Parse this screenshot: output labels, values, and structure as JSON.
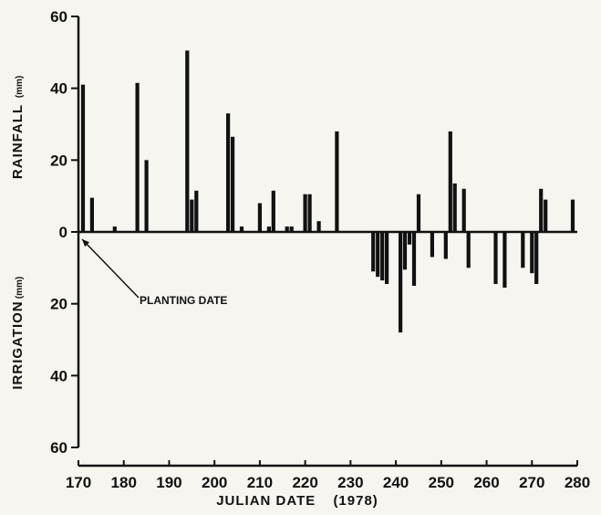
{
  "chart_data": {
    "type": "bar",
    "xlabel": "JULIAN DATE",
    "xlabel_year": "(1978)",
    "ylabel_top": "RAINFALL",
    "ylabel_top_unit": "(mm)",
    "ylabel_bottom": "IRRIGATION",
    "ylabel_bottom_unit": "(mm)",
    "xlim": [
      170,
      280
    ],
    "ylim": [
      -60,
      60
    ],
    "x_ticks": [
      "170",
      "180",
      "190",
      "200",
      "210",
      "220",
      "230",
      "240",
      "250",
      "260",
      "270",
      "280"
    ],
    "y_ticks_top": [
      "60",
      "40",
      "20",
      "0"
    ],
    "y_ticks_bottom": [
      "20",
      "40",
      "60"
    ],
    "annotation": {
      "text": "PLANTING DATE",
      "x": 170,
      "y": 0
    },
    "series": [
      {
        "x": [
          171,
          173,
          178,
          183,
          185,
          194,
          195,
          196,
          203,
          204,
          206,
          210,
          212,
          213,
          216,
          217,
          220,
          221,
          223,
          227,
          252,
          253,
          255
        ],
        "values": [
          41,
          9.5,
          1.5,
          41.5,
          20,
          50.5,
          9,
          11.5,
          33,
          26.5,
          1.5,
          8,
          1.5,
          11.5,
          1.5,
          1.5,
          10.5,
          10.5,
          3,
          28,
          28,
          13.5,
          12
        ]
      },
      {
        "x": [
          235,
          236,
          237,
          238,
          241,
          242,
          243,
          244,
          245,
          248,
          251,
          256,
          262,
          264,
          268,
          270,
          271,
          272,
          273,
          279
        ],
        "values": [
          -11,
          -12.5,
          -13.5,
          -14.5,
          -28,
          -10.5,
          -3.5,
          -15,
          10.5,
          -7,
          -7.5,
          -10,
          -14.5,
          -15.5,
          -10,
          -11.5,
          -14.5,
          12,
          9,
          9
        ]
      }
    ]
  }
}
